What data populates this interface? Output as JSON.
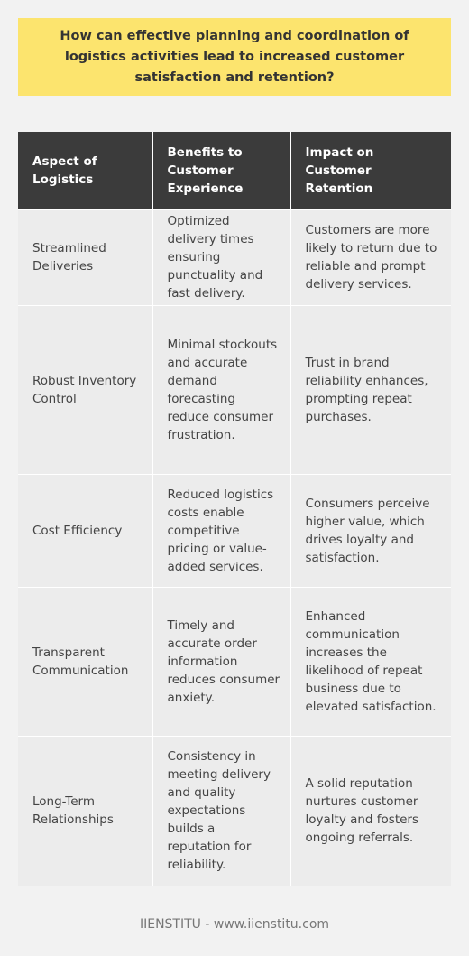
{
  "question": "How can effective planning and coordination of logistics activities lead to increased customer satisfaction and retention?",
  "table": {
    "headers": [
      "Aspect of Logistics",
      "Benefits to Customer Experience",
      "Impact on Customer Retention"
    ],
    "rows": [
      {
        "aspect": "Streamlined Deliveries",
        "benefit": "Optimized delivery times ensuring punctuality and fast delivery.",
        "impact": "Customers are more likely to return due to reliable and prompt delivery services."
      },
      {
        "aspect": "Robust Inventory Control",
        "benefit": "Minimal stockouts and accurate demand forecasting reduce consumer frustration.",
        "impact": "Trust in brand reliability enhances, prompting repeat purchases."
      },
      {
        "aspect": "Cost Efficiency",
        "benefit": "Reduced logistics costs enable competitive pricing or value-added services.",
        "impact": "Consumers perceive higher value, which drives loyalty and satisfaction."
      },
      {
        "aspect": "Transparent Communication",
        "benefit": "Timely and accurate order information reduces consumer anxiety.",
        "impact": "Enhanced communication increases the likelihood of repeat business due to elevated satisfaction."
      },
      {
        "aspect": "Long-Term Relationships",
        "benefit": "Consistency in meeting delivery and quality expectations builds a reputation for reliability.",
        "impact": "A solid reputation nurtures customer loyalty and fosters ongoing referrals."
      }
    ]
  },
  "footer": "IIENSTITU - www.iienstitu.com",
  "colors": {
    "question_bg": "#fce46e",
    "header_bg": "#3b3b3b",
    "cell_bg": "#ececec",
    "page_bg": "#f2f2f2"
  }
}
